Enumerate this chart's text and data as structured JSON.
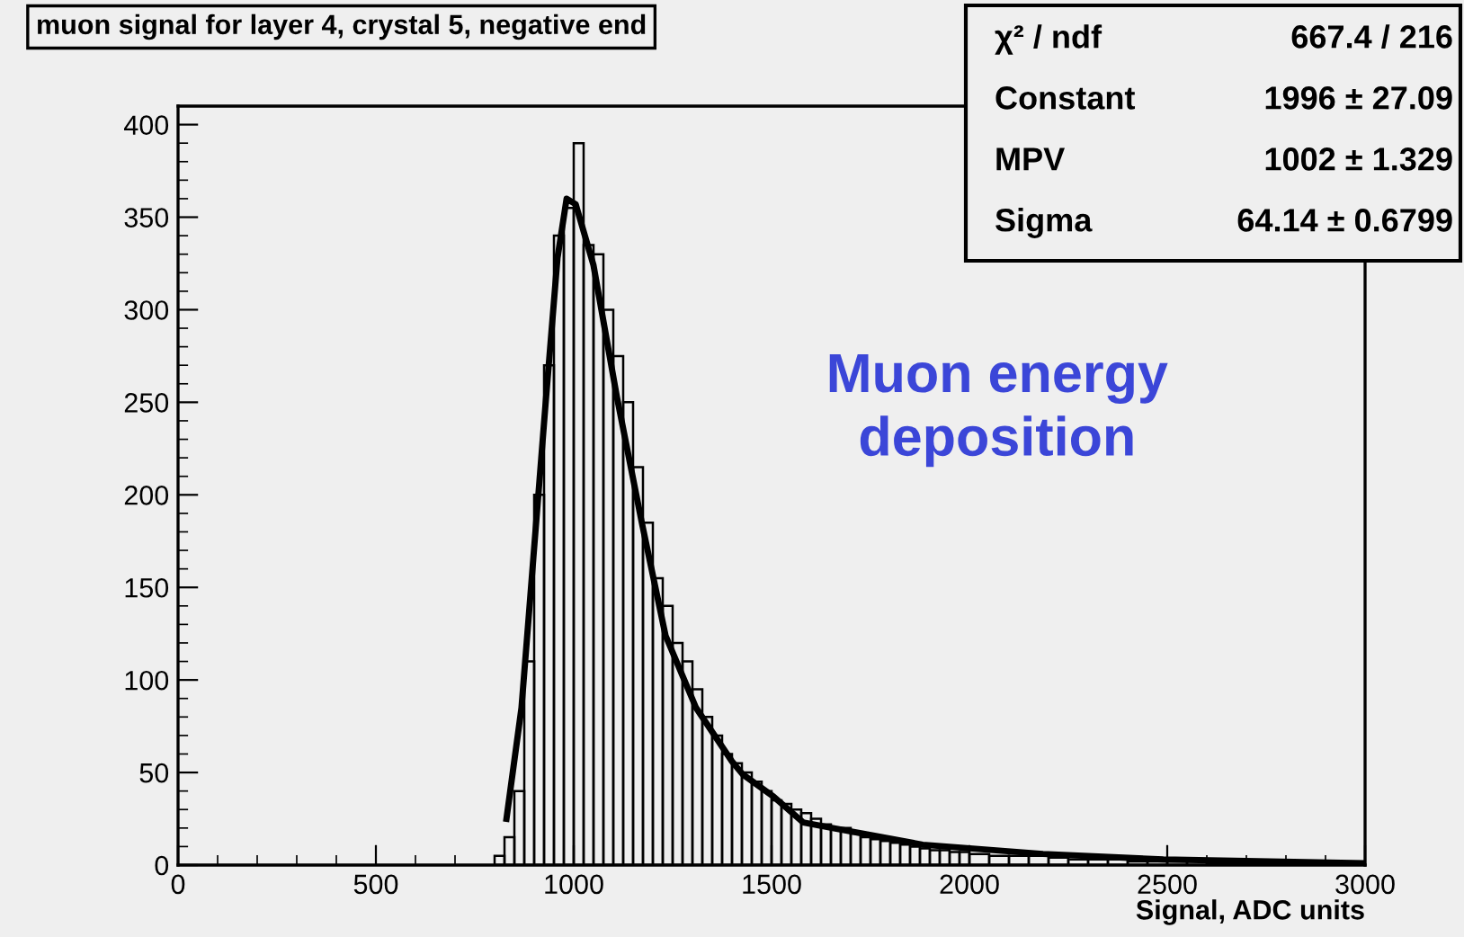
{
  "chart_data": {
    "type": "histogram",
    "title": "muon signal for layer 4, crystal 5, negative end",
    "xlabel": "Signal, ADC units",
    "bins": [
      800,
      825,
      850,
      875,
      900,
      925,
      950,
      975,
      1000,
      1025,
      1050,
      1075,
      1100,
      1125,
      1150,
      1175,
      1200,
      1225,
      1250,
      1275,
      1300,
      1325,
      1350,
      1375,
      1400,
      1425,
      1450,
      1475,
      1500,
      1525,
      1550,
      1575,
      1600,
      1625,
      1650,
      1675,
      1700,
      1725,
      1750,
      1775,
      1800,
      1825,
      1850,
      1875,
      1900,
      1925,
      1950,
      1975,
      2000,
      2050,
      2100,
      2150,
      2200,
      2250,
      2300,
      2350,
      2400,
      2450,
      2500,
      2550,
      2600,
      2650,
      2700,
      2750,
      2800,
      2850,
      2900,
      2950,
      3000
    ],
    "series": [
      {
        "color": "#000000",
        "values": [
          5,
          15,
          40,
          110,
          200,
          270,
          340,
          355,
          390,
          335,
          330,
          300,
          275,
          250,
          215,
          185,
          155,
          140,
          120,
          110,
          95,
          80,
          70,
          60,
          55,
          50,
          45,
          40,
          35,
          33,
          30,
          28,
          25,
          22,
          20,
          20,
          17,
          15,
          14,
          13,
          12,
          11,
          10,
          9,
          8,
          8,
          7,
          7,
          6,
          5,
          5,
          5,
          4,
          3,
          3,
          3,
          2,
          2,
          2,
          2,
          1,
          1,
          1,
          1,
          1,
          1,
          1,
          1
        ]
      },
      {
        "type": "line",
        "color": "#000000",
        "x": [
          830,
          868,
          898,
          928,
          959,
          982,
          1005,
          1050,
          1109,
          1172,
          1232,
          1309,
          1400,
          1427,
          1505,
          1580,
          1655,
          1882,
          2186,
          2490,
          3000
        ],
        "values": [
          25,
          85,
          166,
          247,
          328,
          360,
          357,
          324,
          253,
          185,
          124,
          85,
          56,
          49,
          37,
          23,
          20,
          11,
          6,
          3,
          1
        ]
      }
    ],
    "xlim": [
      0,
      3000
    ],
    "ylim": [
      0,
      410
    ],
    "xticks": [
      0,
      500,
      1000,
      1500,
      2000,
      2500,
      3000
    ],
    "yticks": [
      0,
      50,
      100,
      150,
      200,
      250,
      300,
      350,
      400
    ],
    "grid": false,
    "annotations": [
      "χ² / ndf",
      "667.4 / 216",
      "Constant",
      "1996 ± 27.09",
      "MPV",
      "1002 ± 1.329",
      "Sigma",
      "64.14 ± 0.6799",
      "Muon energy\ndeposition"
    ]
  }
}
